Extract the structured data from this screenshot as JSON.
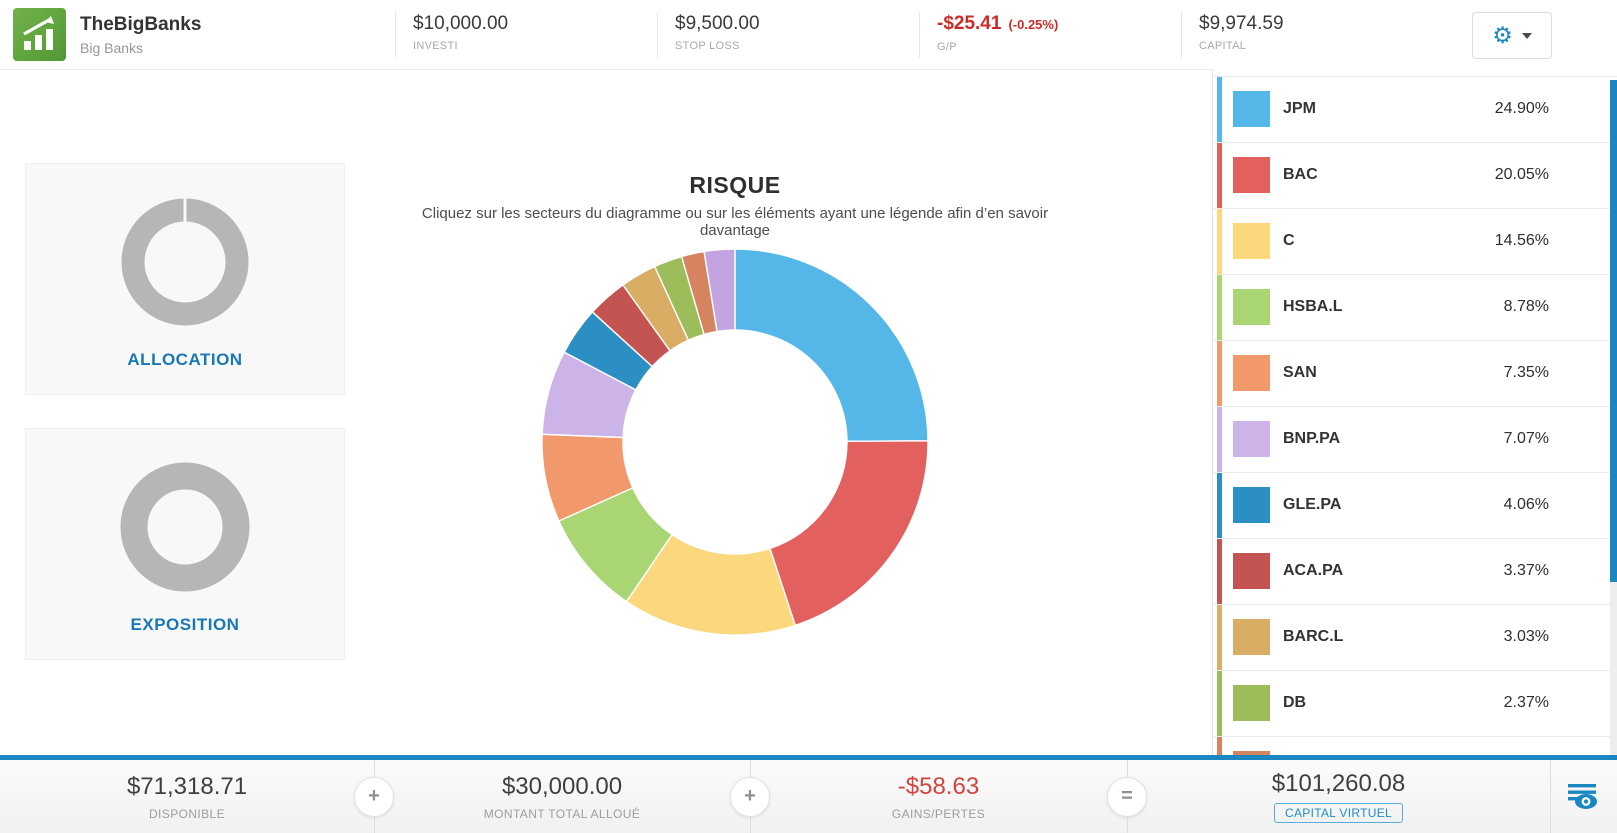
{
  "icons": {
    "gear": "⚙"
  },
  "header": {
    "app_title": "TheBigBanks",
    "app_subtitle": "Big Banks",
    "stats": [
      {
        "value": "$10,000.00",
        "label": "INVESTI"
      },
      {
        "value": "$9,500.00",
        "label": "STOP LOSS"
      },
      {
        "value": "-$25.41",
        "sub_value": "(-0.25%)",
        "label": "G/P"
      },
      {
        "value": "$9,974.59",
        "label": "CAPITAL"
      }
    ]
  },
  "side_tabs": [
    {
      "label": "ALLOCATION"
    },
    {
      "label": "EXPOSITION"
    }
  ],
  "risk_view": {
    "title": "RISQUE",
    "subtitle": "Cliquez sur les secteurs du diagramme ou sur les éléments ayant une légende afin d’en savoir davantage"
  },
  "chart_data": {
    "type": "pie",
    "style": "donut",
    "title": "RISQUE",
    "legend_position": "right",
    "start_angle_deg": 0,
    "direction": "clockwise",
    "slices": [
      {
        "label": "JPM",
        "value": 24.9,
        "display": "24.90%",
        "color": "#55b7e8"
      },
      {
        "label": "BAC",
        "value": 20.05,
        "display": "20.05%",
        "color": "#e2605e"
      },
      {
        "label": "C",
        "value": 14.56,
        "display": "14.56%",
        "color": "#fbd87e"
      },
      {
        "label": "HSBA.L",
        "value": 8.78,
        "display": "8.78%",
        "color": "#a9d572"
      },
      {
        "label": "SAN",
        "value": 7.35,
        "display": "7.35%",
        "color": "#f2996c"
      },
      {
        "label": "BNP.PA",
        "value": 7.07,
        "display": "7.07%",
        "color": "#cdb4e8"
      },
      {
        "label": "GLE.PA",
        "value": 4.06,
        "display": "4.06%",
        "color": "#2b8fc3"
      },
      {
        "label": "ACA.PA",
        "value": 3.37,
        "display": "3.37%",
        "color": "#c45452"
      },
      {
        "label": "BARC.L",
        "value": 3.03,
        "display": "3.03%",
        "color": "#d9ae64"
      },
      {
        "label": "DB",
        "value": 2.37,
        "display": "2.37%",
        "color": "#9cbd5a"
      },
      {
        "label": "",
        "value": 1.9,
        "display": "",
        "color": "#d5845f",
        "legend_partially_visible": true
      },
      {
        "label": "",
        "value": 2.56,
        "display": "",
        "color": "#c3a4e0",
        "in_legend": false
      }
    ]
  },
  "footer": {
    "sections": [
      {
        "value": "$71,318.71",
        "label": "DISPONIBLE"
      },
      {
        "value": "$30,000.00",
        "label": "MONTANT TOTAL ALLOUÉ"
      },
      {
        "value": "-$58.63",
        "label": "GAINS/PERTES"
      },
      {
        "value": "$101,260.08",
        "label": "CAPITAL VIRTUEL"
      }
    ],
    "operators": [
      "+",
      "+",
      "="
    ]
  },
  "colors": {
    "accent_blue": "#1b87c0",
    "link_blue": "#1878b6",
    "negative_red": "#cb2c27",
    "footer_negative_red": "#d0453e",
    "placeholder_ring_gray": "#b6b6b6",
    "logo_green": "#61a53e"
  }
}
